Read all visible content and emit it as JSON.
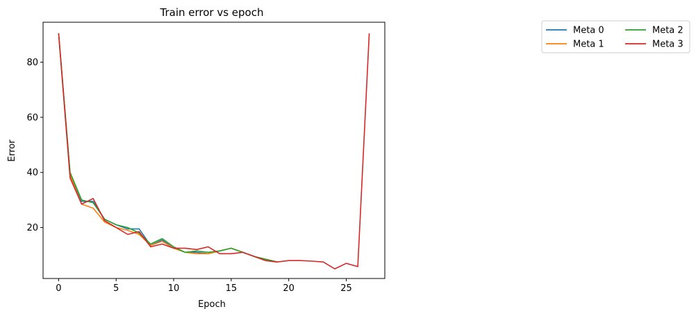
{
  "chart_data": {
    "type": "line",
    "title": "Train error vs epoch",
    "xlabel": "Epoch",
    "ylabel": "Error",
    "xlim": [
      -1.35,
      28.35
    ],
    "ylim": [
      1.5,
      94.5
    ],
    "xticks": [
      0,
      5,
      10,
      15,
      20,
      25
    ],
    "yticks": [
      20,
      40,
      60,
      80
    ],
    "grid": false,
    "legend_placement": "outside-top-right",
    "legend_columns": 2,
    "series": [
      {
        "name": "Meta 0",
        "color": "#1f77b4",
        "x": [
          0,
          1,
          2,
          3,
          4,
          5,
          6,
          7,
          8,
          9,
          10,
          11,
          12,
          13,
          14,
          15,
          16,
          17,
          18,
          19
        ],
        "y": [
          90.5,
          39.5,
          29.5,
          29.5,
          23,
          21,
          19.5,
          19.5,
          13.5,
          15.5,
          12.5,
          11,
          11,
          10.5,
          11.5,
          12.5,
          11,
          9.5,
          8,
          7.5
        ]
      },
      {
        "name": "Meta 1",
        "color": "#ff7f0e",
        "x": [
          0,
          1,
          2,
          3,
          4,
          5,
          6,
          7,
          8,
          9,
          10,
          11,
          12,
          13,
          14,
          15,
          16,
          17,
          18,
          19
        ],
        "y": [
          90.5,
          39,
          28.5,
          27,
          22,
          20,
          19,
          17.5,
          13.5,
          15,
          12.5,
          11,
          10.5,
          10.5,
          11.5,
          12.5,
          11,
          9.5,
          8,
          7.5
        ]
      },
      {
        "name": "Meta 2",
        "color": "#2ca02c",
        "x": [
          0,
          1,
          2,
          3,
          4,
          5,
          6,
          7,
          8,
          9,
          10,
          11,
          12,
          13,
          14,
          15,
          16,
          17,
          18,
          19
        ],
        "y": [
          90.5,
          40,
          30,
          29,
          23,
          21,
          20,
          18,
          14,
          16,
          13,
          11,
          11.5,
          11,
          11.5,
          12.5,
          11,
          9.5,
          8.5,
          7.5
        ]
      },
      {
        "name": "Meta 3",
        "color": "#d62728",
        "x": [
          0,
          1,
          2,
          3,
          4,
          5,
          6,
          7,
          8,
          9,
          10,
          11,
          12,
          13,
          14,
          15,
          16,
          17,
          18,
          19,
          20,
          21,
          22,
          23,
          24,
          25,
          26,
          27
        ],
        "y": [
          90.5,
          38,
          28.5,
          30.5,
          22.5,
          20,
          17.5,
          18.5,
          13,
          14,
          12.5,
          12.5,
          12,
          13,
          10.5,
          10.5,
          11,
          9.5,
          8,
          7.5,
          8,
          8,
          7.8,
          7.5,
          5,
          7,
          5.8,
          90.5
        ]
      }
    ]
  }
}
